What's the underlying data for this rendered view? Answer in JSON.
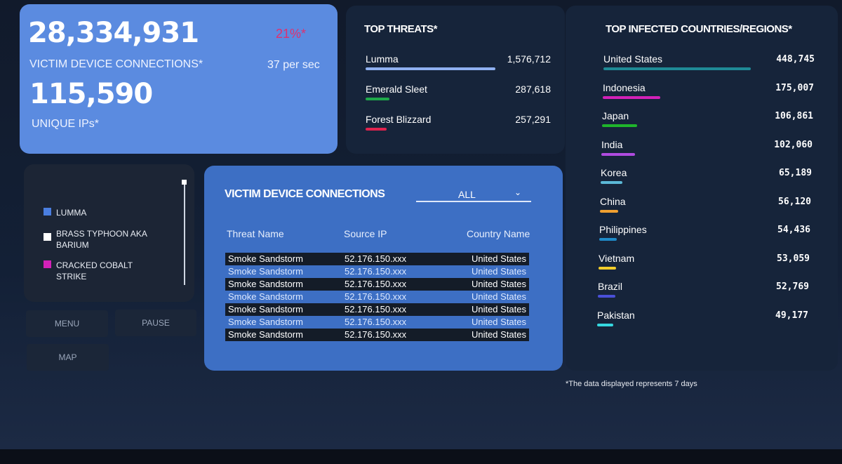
{
  "stats": {
    "connections": "28,334,931",
    "connections_label": "VICTIM DEVICE CONNECTIONS*",
    "change": "21%*",
    "rate": "37 per sec",
    "unique_ips": "115,590",
    "unique_ips_label": "UNIQUE IPs*"
  },
  "top_threats": {
    "title": "TOP THREATS*",
    "items": [
      {
        "name": "Lumma",
        "value": 1576712,
        "display": "1,576,712",
        "color": "#8fb0f0"
      },
      {
        "name": "Emerald Sleet",
        "value": 287618,
        "display": "287,618",
        "color": "#1fa84a"
      },
      {
        "name": "Forest Blizzard",
        "value": 257291,
        "display": "257,291",
        "color": "#e0234e"
      }
    ]
  },
  "top_countries": {
    "title": "TOP INFECTED COUNTRIES/REGIONS*",
    "items": [
      {
        "name": "United States",
        "value": 448745,
        "display": "448,745",
        "color": "#1f8a96"
      },
      {
        "name": "Indonesia",
        "value": 175007,
        "display": "175,007",
        "color": "#d321b8"
      },
      {
        "name": "Japan",
        "value": 106861,
        "display": "106,861",
        "color": "#1fb52c"
      },
      {
        "name": "India",
        "value": 102060,
        "display": "102,060",
        "color": "#b04be0"
      },
      {
        "name": "Korea",
        "value": 65189,
        "display": "65,189",
        "color": "#5bb8d6"
      },
      {
        "name": "China",
        "value": 56120,
        "display": "56,120",
        "color": "#f0a030"
      },
      {
        "name": "Philippines",
        "value": 54436,
        "display": "54,436",
        "color": "#1f8ac8"
      },
      {
        "name": "Vietnam",
        "value": 53059,
        "display": "53,059",
        "color": "#f2cc2a"
      },
      {
        "name": "Brazil",
        "value": 52769,
        "display": "52,769",
        "color": "#4a50d8"
      },
      {
        "name": "Pakistan",
        "value": 49177,
        "display": "49,177",
        "color": "#35d8e0"
      }
    ]
  },
  "legend": [
    {
      "label": "LUMMA",
      "color": "#4a7ee0"
    },
    {
      "label": "BRASS TYPHOON AKA BARIUM",
      "color": "#ffffff"
    },
    {
      "label": "CRACKED COBALT STRIKE",
      "color": "#d321b8"
    }
  ],
  "buttons": {
    "menu": "MENU",
    "pause": "PAUSE",
    "map": "MAP"
  },
  "connections_table": {
    "title": "VICTIM DEVICE CONNECTIONS",
    "filter": "ALL",
    "columns": [
      "Threat Name",
      "Source IP",
      "Country Name"
    ],
    "rows": [
      [
        "Smoke Sandstorm",
        "52.176.150.xxx",
        "United States"
      ],
      [
        "Smoke Sandstorm",
        "52.176.150.xxx",
        "United States"
      ],
      [
        "Smoke Sandstorm",
        "52.176.150.xxx",
        "United States"
      ],
      [
        "Smoke Sandstorm",
        "52.176.150.xxx",
        "United States"
      ],
      [
        "Smoke Sandstorm",
        "52.176.150.xxx",
        "United States"
      ],
      [
        "Smoke Sandstorm",
        "52.176.150.xxx",
        "United States"
      ],
      [
        "Smoke Sandstorm",
        "52.176.150.xxx",
        "United States"
      ]
    ]
  },
  "footnote": "*The data displayed represents 7 days"
}
